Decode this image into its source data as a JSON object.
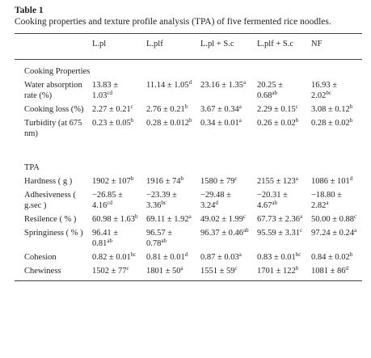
{
  "table_title": "Table 1",
  "caption": "Cooking properties and texture profile analysis (TPA) of five fermented rice noodles.",
  "columns": [
    "L.pl",
    "L.plf",
    "L.pl + S.c",
    "L.plf + S.c",
    "NF"
  ],
  "sections": [
    {
      "title": "Cooking Properties",
      "rows": [
        {
          "label": "Water absorption rate (%)",
          "cells": [
            {
              "text": "13.83 ± 1.03",
              "sup": "cd"
            },
            {
              "text": "11.14 ± 1.05",
              "sup": "d"
            },
            {
              "text": "23.16 ± 1.35",
              "sup": "a"
            },
            {
              "text": "20.25 ± 0.68",
              "sup": "ab"
            },
            {
              "text": "16.93 ± 2.02",
              "sup": "bc"
            }
          ]
        },
        {
          "label": "Cooking loss (%)",
          "cells": [
            {
              "text": "2.27 ± 0.21",
              "sup": "c"
            },
            {
              "text": "2.76 ± 0.21",
              "sup": "b"
            },
            {
              "text": "3.67 ± 0.34",
              "sup": "a"
            },
            {
              "text": "2.29 ± 0.15",
              "sup": "c"
            },
            {
              "text": "3.08 ± 0.12",
              "sup": "b"
            }
          ]
        },
        {
          "label": "Turbidity (at 675 nm)",
          "cells": [
            {
              "text": "0.23 ± 0.05",
              "sup": "b"
            },
            {
              "text": "0.28 ± 0.012",
              "sup": "b"
            },
            {
              "text": "0.34 ± 0.01",
              "sup": "a"
            },
            {
              "text": "0.26 ± 0.02",
              "sup": "b"
            },
            {
              "text": "0.28 ± 0.02",
              "sup": "b"
            }
          ]
        }
      ]
    },
    {
      "title": "TPA",
      "rows": [
        {
          "label": "Hardness ( g )",
          "cells": [
            {
              "text": "1902 ± 107",
              "sup": "b"
            },
            {
              "text": "1916 ± 74",
              "sup": "b"
            },
            {
              "text": "1580 ± 79",
              "sup": "c"
            },
            {
              "text": "2155 ± 123",
              "sup": "a"
            },
            {
              "text": "1086 ± 101",
              "sup": "d"
            }
          ]
        },
        {
          "label": "Adhesiveness ( g.sec )",
          "cells": [
            {
              "text": "−26.85 ± 4.16",
              "sup": "cd"
            },
            {
              "text": "−23.39 ± 3.36",
              "sup": "bc"
            },
            {
              "text": "−29.48 ± 3.24",
              "sup": "d"
            },
            {
              "text": "−20.31 ± 4.67",
              "sup": "ab"
            },
            {
              "text": "−18.80 ± 2.82",
              "sup": "a"
            }
          ]
        },
        {
          "label": "Resilence ( % )",
          "cells": [
            {
              "text": "60.98 ± 1.63",
              "sup": "b"
            },
            {
              "text": "69.11 ± 1.92",
              "sup": "a"
            },
            {
              "text": "49.02 ± 1.99",
              "sup": "c"
            },
            {
              "text": "67.73 ± 2.36",
              "sup": "a"
            },
            {
              "text": "50.00 ± 0.88",
              "sup": "c"
            }
          ]
        },
        {
          "label": "Springiness ( % )",
          "cells": [
            {
              "text": "96.41 ± 0.81",
              "sup": "ab"
            },
            {
              "text": "96.57 ± 0.78",
              "sup": "ab"
            },
            {
              "text": "96.37 ± 0.46",
              "sup": "ab"
            },
            {
              "text": "95.59 ± 3.31",
              "sup": "c"
            },
            {
              "text": "97.24 ± 0.24",
              "sup": "a"
            }
          ]
        },
        {
          "label": "Cohesion",
          "cells": [
            {
              "text": "0.82 ± 0.01",
              "sup": "bc"
            },
            {
              "text": "0.81 ± 0.01",
              "sup": "d"
            },
            {
              "text": "0.87 ± 0.03",
              "sup": "a"
            },
            {
              "text": "0.83 ± 0.01",
              "sup": "bc"
            },
            {
              "text": "0.84 ± 0.02",
              "sup": "b"
            }
          ]
        },
        {
          "label": "Chewiness",
          "cells": [
            {
              "text": "1502 ± 77",
              "sup": "c"
            },
            {
              "text": "1801 ± 50",
              "sup": "a"
            },
            {
              "text": "1551 ± 59",
              "sup": "c"
            },
            {
              "text": "1701 ± 122",
              "sup": "b"
            },
            {
              "text": "1081 ± 86",
              "sup": "d"
            }
          ]
        }
      ]
    }
  ]
}
